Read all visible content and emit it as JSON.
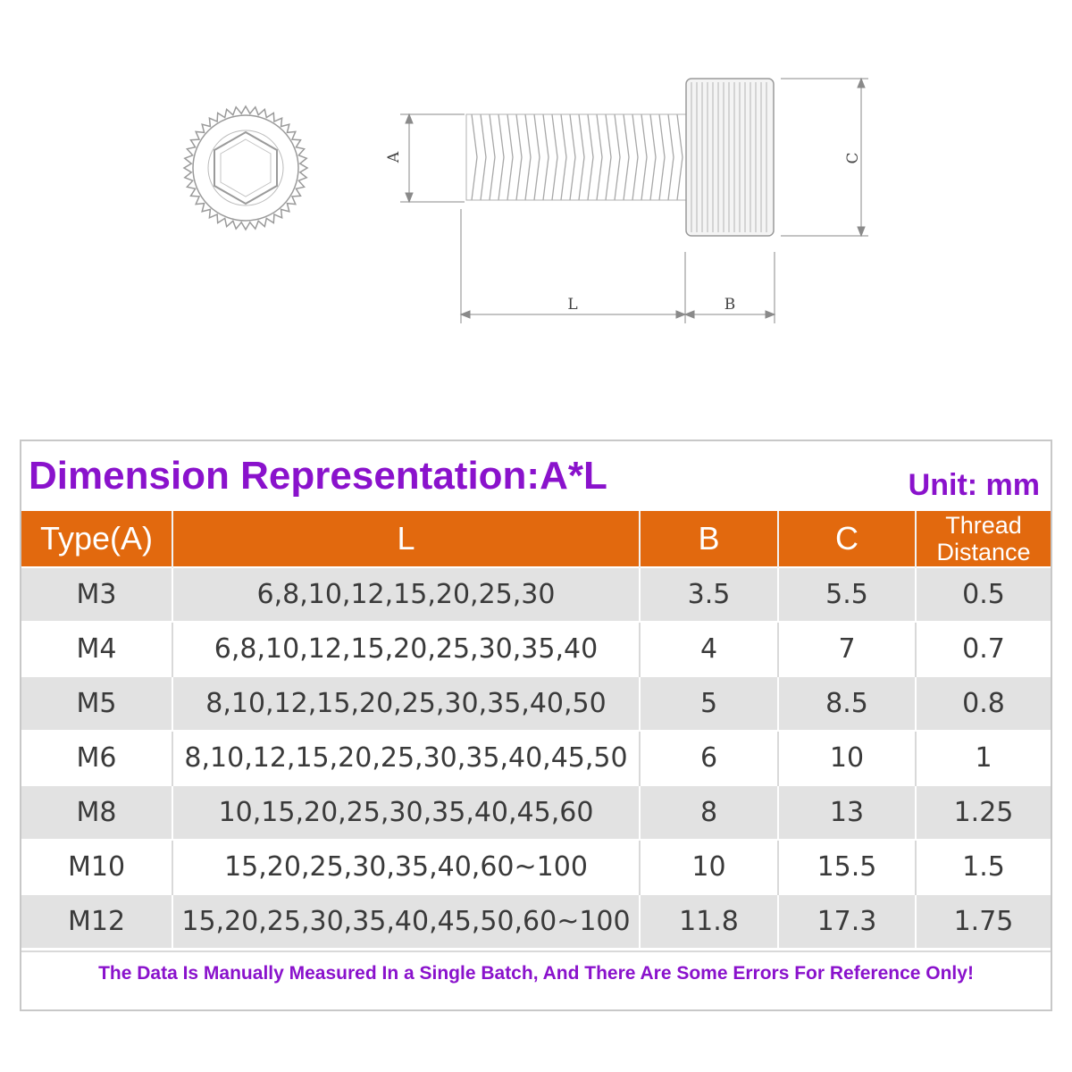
{
  "diagram": {
    "labels": {
      "a": "A",
      "c": "C",
      "l": "L",
      "b": "B"
    }
  },
  "table": {
    "title": "Dimension Representation:A*L",
    "unit": "Unit: mm",
    "headers": {
      "type": "Type(A)",
      "l": "L",
      "b": "B",
      "c": "C",
      "thread_line1": "Thread",
      "thread_line2": "Distance"
    },
    "rows": [
      {
        "type": "M3",
        "l": "6,8,10,12,15,20,25,30",
        "b": "3.5",
        "c": "5.5",
        "thread": "0.5"
      },
      {
        "type": "M4",
        "l": "6,8,10,12,15,20,25,30,35,40",
        "b": "4",
        "c": "7",
        "thread": "0.7"
      },
      {
        "type": "M5",
        "l": "8,10,12,15,20,25,30,35,40,50",
        "b": "5",
        "c": "8.5",
        "thread": "0.8"
      },
      {
        "type": "M6",
        "l": "8,10,12,15,20,25,30,35,40,45,50",
        "b": "6",
        "c": "10",
        "thread": "1"
      },
      {
        "type": "M8",
        "l": "10,15,20,25,30,35,40,45,60",
        "b": "8",
        "c": "13",
        "thread": "1.25"
      },
      {
        "type": "M10",
        "l": "15,20,25,30,35,40,60~100",
        "b": "10",
        "c": "15.5",
        "thread": "1.5"
      },
      {
        "type": "M12",
        "l": "15,20,25,30,35,40,45,50,60~100",
        "b": "11.8",
        "c": "17.3",
        "thread": "1.75"
      }
    ],
    "footnote": "The Data Is Manually Measured In a Single Batch, And There Are Some Errors For Reference Only!"
  },
  "colors": {
    "accent_purple": "#8a12cc",
    "header_orange": "#e2690e",
    "row_gray": "#e2e2e2"
  }
}
